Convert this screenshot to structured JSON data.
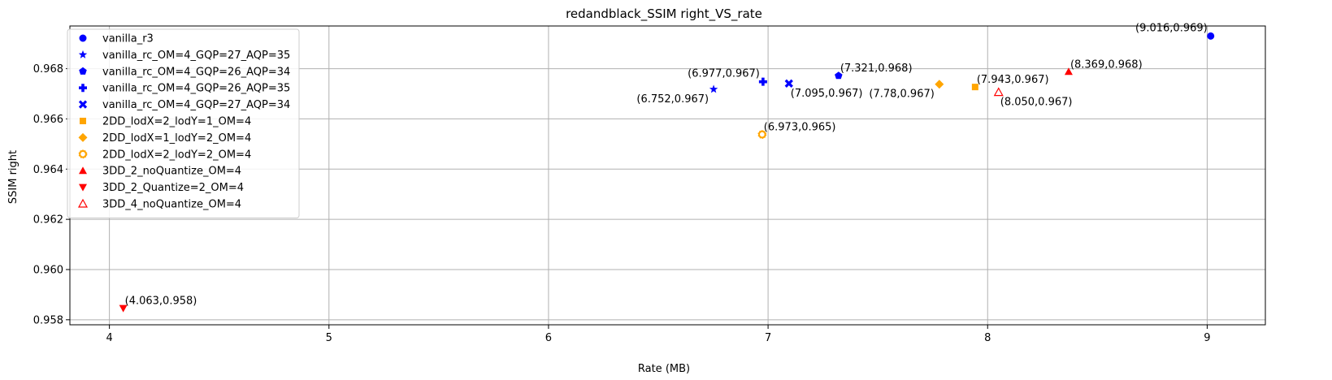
{
  "chart_data": {
    "type": "scatter",
    "title": "redandblack_SSIM right_VS_rate",
    "xlabel": "Rate (MB)",
    "ylabel": "SSIM right",
    "xlim": [
      3.82,
      9.265
    ],
    "ylim": [
      0.9578,
      0.9697
    ],
    "xticks": [
      4,
      5,
      6,
      7,
      8,
      9
    ],
    "yticks": [
      0.958,
      0.96,
      0.962,
      0.964,
      0.966,
      0.968
    ],
    "ytick_labels": [
      "0.958",
      "0.960",
      "0.962",
      "0.964",
      "0.966",
      "0.968"
    ],
    "grid": true,
    "legend_position": "upper-left",
    "series": [
      {
        "name": "vanilla_r3",
        "color": "#0000ff",
        "marker": "circle",
        "x": 9.016,
        "y": 0.9693,
        "label": "(9.016,0.969)",
        "label_pos": "left"
      },
      {
        "name": "vanilla_rc_OM=4_GQP=27_AQP=35",
        "color": "#0000ff",
        "marker": "star",
        "x": 6.752,
        "y": 0.96718,
        "label": "(6.752,0.967)",
        "label_pos": "below-left"
      },
      {
        "name": "vanilla_rc_OM=4_GQP=26_AQP=34",
        "color": "#0000ff",
        "marker": "pentagon",
        "x": 7.321,
        "y": 0.96772,
        "label": "(7.321,0.968)",
        "label_pos": "right"
      },
      {
        "name": "vanilla_rc_OM=4_GQP=26_AQP=35",
        "color": "#0000ff",
        "marker": "plus",
        "x": 6.977,
        "y": 0.96748,
        "label": "(6.977,0.967)",
        "label_pos": "left"
      },
      {
        "name": "vanilla_rc_OM=4_GQP=27_AQP=34",
        "color": "#0000ff",
        "marker": "x",
        "x": 7.095,
        "y": 0.96741,
        "label": "(7.095,0.967)",
        "label_pos": "below"
      },
      {
        "name": "2DD_lodX=2_lodY=1_OM=4",
        "color": "#ffa500",
        "marker": "square",
        "x": 7.943,
        "y": 0.96727,
        "label": "(7.943,0.967)",
        "label_pos": "right"
      },
      {
        "name": "2DD_lodX=1_lodY=2_OM=4",
        "color": "#ffa500",
        "marker": "diamond",
        "x": 7.78,
        "y": 0.96738,
        "label": "(7.78,0.967)",
        "label_pos": "below-left"
      },
      {
        "name": "2DD_lodX=2_lodY=2_OM=4",
        "color": "#ffa500",
        "marker": "octagon-open",
        "x": 6.973,
        "y": 0.96538,
        "label": "(6.973,0.965)",
        "label_pos": "right"
      },
      {
        "name": "3DD_2_noQuantize_OM=4",
        "color": "#ff0000",
        "marker": "triangle-up",
        "x": 8.369,
        "y": 0.96788,
        "label": "(8.369,0.968)",
        "label_pos": "right"
      },
      {
        "name": "3DD_2_Quantize=2_OM=4",
        "color": "#ff0000",
        "marker": "triangle-down",
        "x": 4.063,
        "y": 0.95846,
        "label": "(4.063,0.958)",
        "label_pos": "right"
      },
      {
        "name": "3DD_4_noQuantize_OM=4",
        "color": "#ff0000",
        "marker": "triangle-up-open",
        "x": 8.05,
        "y": 0.96706,
        "label": "(8.050,0.967)",
        "label_pos": "below"
      }
    ]
  }
}
